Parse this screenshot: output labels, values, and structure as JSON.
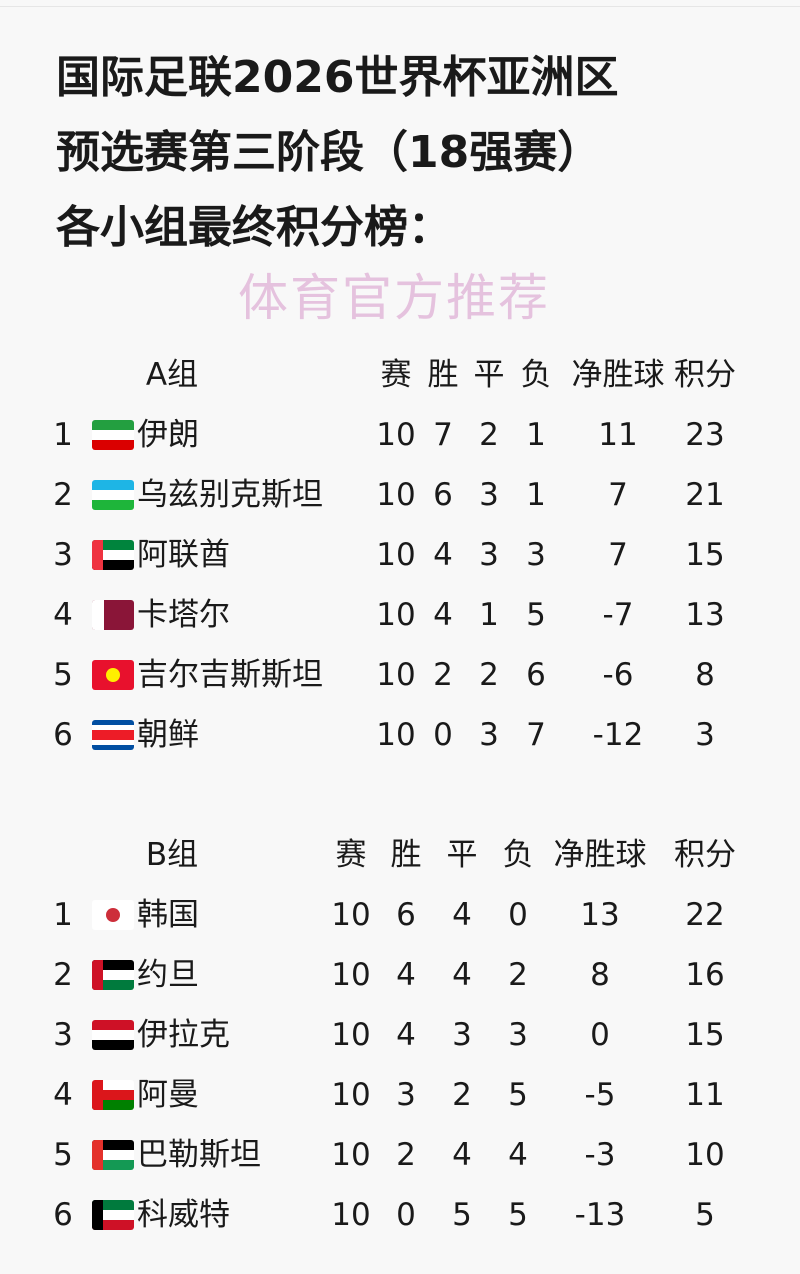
{
  "title": {
    "lines": [
      "国际足联2026世界杯亚洲区",
      "预选赛第三阶段（18强赛）",
      "各小组最终积分榜："
    ]
  },
  "columns": [
    "赛",
    "胜",
    "平",
    "负",
    "净胜球",
    "积分"
  ],
  "groups": [
    {
      "name": "A组",
      "rows": [
        {
          "rank": "1",
          "team": "伊朗",
          "flag": {
            "icon": "iran-flag",
            "stripes": [
              "#239f40",
              "#ffffff",
              "#da0000"
            ]
          },
          "stats": [
            "10",
            "7",
            "2",
            "1",
            "11",
            "23"
          ]
        },
        {
          "rank": "2",
          "team": "乌兹别克斯坦",
          "flag": {
            "icon": "uzbekistan-flag",
            "stripes": [
              "#1eb5e5",
              "#ffffff",
              "#1eb53a"
            ]
          },
          "stats": [
            "10",
            "6",
            "3",
            "1",
            "7",
            "21"
          ]
        },
        {
          "rank": "3",
          "team": "阿联酋",
          "flag": {
            "icon": "uae-flag",
            "stripes": [
              "#00843d",
              "#ffffff",
              "#000000"
            ],
            "hoist": "#ef3340"
          },
          "stats": [
            "10",
            "4",
            "3",
            "3",
            "7",
            "15"
          ]
        },
        {
          "rank": "4",
          "team": "卡塔尔",
          "flag": {
            "icon": "qatar-flag",
            "stripes": [
              "#8a1538"
            ],
            "hoist": "#ffffff"
          },
          "stats": [
            "10",
            "4",
            "1",
            "5",
            "-7",
            "13"
          ]
        },
        {
          "rank": "5",
          "team": "吉尔吉斯斯坦",
          "flag": {
            "icon": "kyrgyzstan-flag",
            "stripes": [
              "#e8112d"
            ],
            "emblem": "#ffef00"
          },
          "stats": [
            "10",
            "2",
            "2",
            "6",
            "-6",
            "8"
          ]
        },
        {
          "rank": "6",
          "team": "朝鲜",
          "flag": {
            "icon": "north-korea-flag",
            "stripes": [
              "#024fa2",
              "#ffffff",
              "#ed1c27",
              "#ed1c27",
              "#ffffff",
              "#024fa2"
            ]
          },
          "stats": [
            "10",
            "0",
            "3",
            "7",
            "-12",
            "3"
          ]
        }
      ]
    },
    {
      "name": "B组",
      "rows": [
        {
          "rank": "1",
          "team": "韩国",
          "flag": {
            "icon": "south-korea-flag",
            "stripes": [
              "#ffffff"
            ],
            "emblem": "#cd2e3a"
          },
          "stats": [
            "10",
            "6",
            "4",
            "0",
            "13",
            "22"
          ]
        },
        {
          "rank": "2",
          "team": "约旦",
          "flag": {
            "icon": "jordan-flag",
            "stripes": [
              "#000000",
              "#ffffff",
              "#007a3d"
            ],
            "hoist": "#ce1126"
          },
          "stats": [
            "10",
            "4",
            "4",
            "2",
            "8",
            "16"
          ]
        },
        {
          "rank": "3",
          "team": "伊拉克",
          "flag": {
            "icon": "iraq-flag",
            "stripes": [
              "#ce1126",
              "#ffffff",
              "#000000"
            ]
          },
          "stats": [
            "10",
            "4",
            "3",
            "3",
            "0",
            "15"
          ]
        },
        {
          "rank": "4",
          "team": "阿曼",
          "flag": {
            "icon": "oman-flag",
            "stripes": [
              "#ffffff",
              "#db161b",
              "#008000"
            ],
            "hoist": "#db161b"
          },
          "stats": [
            "10",
            "3",
            "2",
            "5",
            "-5",
            "11"
          ]
        },
        {
          "rank": "5",
          "team": "巴勒斯坦",
          "flag": {
            "icon": "palestine-flag",
            "stripes": [
              "#000000",
              "#ffffff",
              "#149954"
            ],
            "hoist": "#e4312b"
          },
          "stats": [
            "10",
            "2",
            "4",
            "4",
            "-3",
            "10"
          ]
        },
        {
          "rank": "6",
          "team": "科威特",
          "flag": {
            "icon": "kuwait-flag",
            "stripes": [
              "#007a3d",
              "#ffffff",
              "#ce1126"
            ],
            "hoist": "#000000"
          },
          "stats": [
            "10",
            "0",
            "5",
            "5",
            "-13",
            "5"
          ]
        }
      ]
    }
  ],
  "watermark": "体育官方推荐"
}
